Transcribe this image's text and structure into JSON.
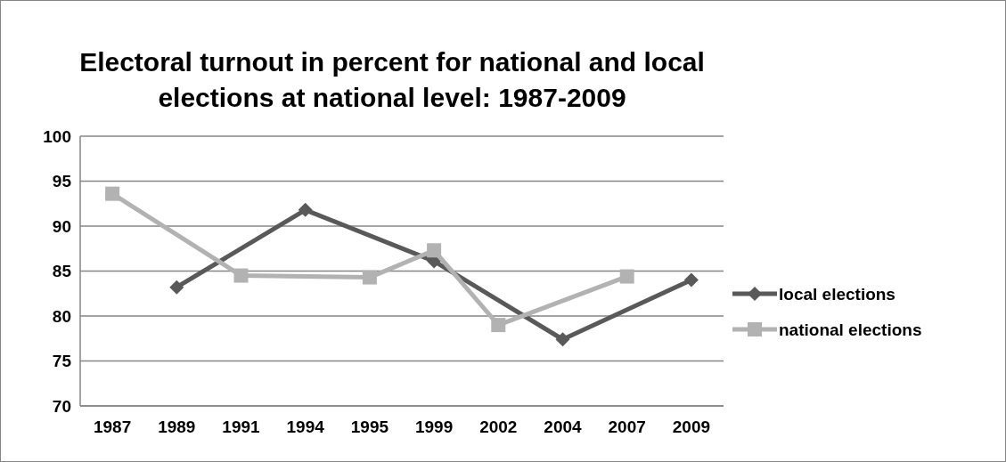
{
  "chart_data": {
    "type": "line",
    "title": "Electoral turnout in percent for national and local elections at national level: 1987-2009",
    "categories": [
      "1987",
      "1989",
      "1991",
      "1994",
      "1995",
      "1999",
      "2002",
      "2004",
      "2007",
      "2009"
    ],
    "series": [
      {
        "name": "local elections",
        "color": "#595959",
        "marker": "diamond",
        "values": [
          null,
          83.2,
          null,
          91.8,
          null,
          86.1,
          null,
          77.4,
          null,
          84.0
        ]
      },
      {
        "name": "national elections",
        "color": "#b2b2b2",
        "marker": "square",
        "values": [
          93.6,
          null,
          84.5,
          null,
          84.3,
          87.3,
          79.0,
          null,
          84.4,
          null
        ]
      }
    ],
    "ylim": [
      70,
      100
    ],
    "yticks": [
      70,
      75,
      80,
      85,
      90,
      95,
      100
    ],
    "grid": "y",
    "legend": "right",
    "line_style": "solid"
  }
}
